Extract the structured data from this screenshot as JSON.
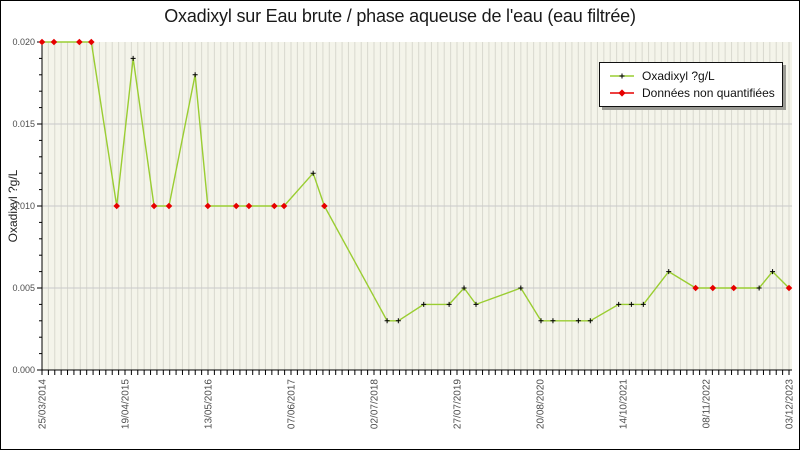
{
  "chart_data": {
    "type": "line",
    "title": "Oxadixyl sur Eau brute / phase aqueuse de l'eau (eau filtrée)",
    "ylabel": "Oxadixyl ?g/L",
    "ylim": [
      0,
      0.02
    ],
    "y_tick_labels": [
      "0.000",
      "0.005",
      "0.010",
      "0.015",
      "0.020"
    ],
    "y_major_step": 0.005,
    "y_minor_step": 0.001,
    "x_tick_labels": [
      "25/03/2014",
      "19/04/2015",
      "13/05/2016",
      "07/06/2017",
      "02/07/2018",
      "27/07/2019",
      "20/08/2020",
      "14/10/2021",
      "08/11/2022",
      "03/12/2023"
    ],
    "grid": {
      "vertical_minor": true,
      "horizontal_major": true
    },
    "legend": {
      "position": "top-right",
      "entries": [
        {
          "label": "Oxadixyl ?g/L",
          "marker": "plus-black-icon",
          "line_color": "#9acd32",
          "marker_color": "#000000"
        },
        {
          "label": "Données non quantifiées",
          "marker": "diamond-red-icon",
          "line_color": "#e60000",
          "marker_color": "#e60000"
        }
      ]
    },
    "series": [
      {
        "name": "Oxadixyl ?g/L",
        "unit": "?g/L",
        "points": [
          {
            "x": 0.0,
            "value": 0.02,
            "quantified": false
          },
          {
            "x": 0.016,
            "value": 0.02,
            "quantified": false
          },
          {
            "x": 0.05,
            "value": 0.02,
            "quantified": false
          },
          {
            "x": 0.066,
            "value": 0.02,
            "quantified": false
          },
          {
            "x": 0.1,
            "value": 0.01,
            "quantified": false
          },
          {
            "x": 0.122,
            "value": 0.019,
            "quantified": true
          },
          {
            "x": 0.15,
            "value": 0.01,
            "quantified": false
          },
          {
            "x": 0.17,
            "value": 0.01,
            "quantified": false
          },
          {
            "x": 0.205,
            "value": 0.018,
            "quantified": true
          },
          {
            "x": 0.222,
            "value": 0.01,
            "quantified": false
          },
          {
            "x": 0.26,
            "value": 0.01,
            "quantified": false
          },
          {
            "x": 0.277,
            "value": 0.01,
            "quantified": false
          },
          {
            "x": 0.311,
            "value": 0.01,
            "quantified": false
          },
          {
            "x": 0.324,
            "value": 0.01,
            "quantified": false
          },
          {
            "x": 0.363,
            "value": 0.012,
            "quantified": true
          },
          {
            "x": 0.378,
            "value": 0.01,
            "quantified": false
          },
          {
            "x": 0.462,
            "value": 0.003,
            "quantified": true
          },
          {
            "x": 0.477,
            "value": 0.003,
            "quantified": true
          },
          {
            "x": 0.511,
            "value": 0.004,
            "quantified": true
          },
          {
            "x": 0.545,
            "value": 0.004,
            "quantified": true
          },
          {
            "x": 0.565,
            "value": 0.005,
            "quantified": true
          },
          {
            "x": 0.581,
            "value": 0.004,
            "quantified": true
          },
          {
            "x": 0.641,
            "value": 0.005,
            "quantified": true
          },
          {
            "x": 0.668,
            "value": 0.003,
            "quantified": true
          },
          {
            "x": 0.684,
            "value": 0.003,
            "quantified": true
          },
          {
            "x": 0.718,
            "value": 0.003,
            "quantified": true
          },
          {
            "x": 0.734,
            "value": 0.003,
            "quantified": true
          },
          {
            "x": 0.772,
            "value": 0.004,
            "quantified": true
          },
          {
            "x": 0.789,
            "value": 0.004,
            "quantified": true
          },
          {
            "x": 0.805,
            "value": 0.004,
            "quantified": true
          },
          {
            "x": 0.839,
            "value": 0.006,
            "quantified": true
          },
          {
            "x": 0.875,
            "value": 0.005,
            "quantified": false
          },
          {
            "x": 0.898,
            "value": 0.005,
            "quantified": false
          },
          {
            "x": 0.926,
            "value": 0.005,
            "quantified": false
          },
          {
            "x": 0.96,
            "value": 0.005,
            "quantified": true
          },
          {
            "x": 0.978,
            "value": 0.006,
            "quantified": true
          },
          {
            "x": 1.0,
            "value": 0.005,
            "quantified": false
          }
        ]
      }
    ]
  },
  "colors": {
    "plot_bg": "#f4f4ea",
    "grid_vertical": "#d9d9cf",
    "grid_horizontal": "#c9c9c9",
    "axis": "#000000",
    "tick_label": "#4d4d4d",
    "line_green": "#9acd32",
    "nonquant_red": "#e60000",
    "marker_black": "#000000",
    "title_text": "#1a1a1a",
    "legend_shadow": "#9a9a94"
  }
}
